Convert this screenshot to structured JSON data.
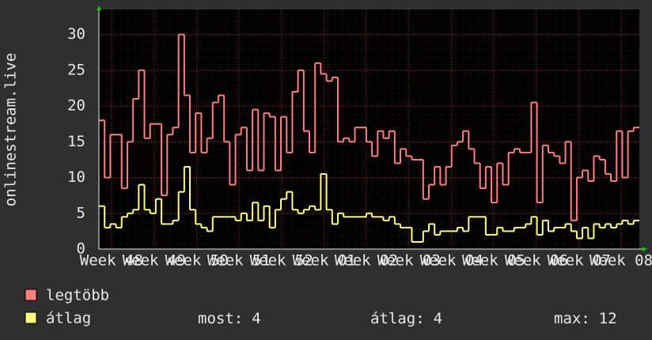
{
  "chart_data": {
    "type": "line",
    "step": true,
    "y_label": "onlinestream.live",
    "xlim": [
      0,
      95
    ],
    "xticks": [
      {
        "value": 2.2,
        "label": "Week 48"
      },
      {
        "value": 9.7,
        "label": "Week 49"
      },
      {
        "value": 17.2,
        "label": "Week 50"
      },
      {
        "value": 24.6,
        "label": "Week 51"
      },
      {
        "value": 32.1,
        "label": "Week 52"
      },
      {
        "value": 39.6,
        "label": "Week 01"
      },
      {
        "value": 47.0,
        "label": "Week 02"
      },
      {
        "value": 54.5,
        "label": "Week 03"
      },
      {
        "value": 62.0,
        "label": "Week 04"
      },
      {
        "value": 69.4,
        "label": "Week 05"
      },
      {
        "value": 76.9,
        "label": "Week 06"
      },
      {
        "value": 84.4,
        "label": "Week 07"
      },
      {
        "value": 91.8,
        "label": "Week 08"
      }
    ],
    "ylim": [
      0,
      33.5
    ],
    "yticks": [
      0,
      5,
      10,
      15,
      20,
      25,
      30
    ],
    "grid": true,
    "series": [
      {
        "name": "legtöbb",
        "color": "#ff7f7f",
        "values": [
          18,
          10,
          16,
          16,
          8.5,
          15,
          21,
          25,
          15.5,
          17.5,
          17.5,
          7.5,
          16,
          17,
          30,
          21.5,
          13.5,
          19,
          13.5,
          15.5,
          20.5,
          21.5,
          15,
          9,
          16,
          17,
          11,
          19.5,
          11,
          19,
          18.5,
          11,
          18.5,
          13.5,
          22,
          25,
          16.5,
          13.5,
          26,
          24.5,
          23.5,
          24,
          15,
          15.5,
          15,
          17,
          17,
          15,
          13,
          16.5,
          15.5,
          16.5,
          12,
          14,
          13,
          12.5,
          12.5,
          7,
          9,
          11.5,
          9,
          11.5,
          14.5,
          15,
          16.5,
          14,
          12,
          8.5,
          11.5,
          6.5,
          12,
          9,
          13.5,
          14,
          13.5,
          13.5,
          20.5,
          6.5,
          14.5,
          13.5,
          13,
          12,
          15,
          4,
          10,
          11,
          9.5,
          13,
          12.5,
          10.5,
          9.5,
          16.5,
          10,
          16.5,
          17
        ]
      },
      {
        "name": "átlag",
        "color": "#ffff7f",
        "values": [
          6,
          3,
          3.5,
          3,
          4.5,
          5,
          5.5,
          9,
          5.5,
          5,
          7,
          3.5,
          3.5,
          4,
          8,
          11.5,
          5.5,
          3.5,
          3,
          2.5,
          4.5,
          4.5,
          4.5,
          4.5,
          4,
          5,
          4,
          6.5,
          4,
          6,
          3,
          5.5,
          7,
          8,
          5.5,
          5,
          5.5,
          6,
          5.5,
          10.5,
          5.5,
          3.5,
          5,
          4.5,
          4.5,
          4.5,
          4.5,
          5,
          4.5,
          4.5,
          4,
          4.5,
          3.5,
          3,
          3,
          1,
          1,
          2.5,
          3.5,
          2,
          2.5,
          2.5,
          2.5,
          3,
          2.5,
          4.5,
          4.5,
          4.5,
          2,
          2,
          3,
          2.5,
          2.5,
          3,
          3,
          3.5,
          4.5,
          2,
          4,
          2.5,
          3,
          3,
          3.5,
          2.5,
          1.5,
          3,
          1.5,
          3.5,
          3,
          3.5,
          3,
          3.5,
          4,
          3.5,
          4
        ]
      }
    ],
    "stats": [
      {
        "label": "most:",
        "value": 4
      },
      {
        "label": "átlag:",
        "value": 4
      },
      {
        "label": "max:",
        "value": 12
      }
    ]
  }
}
